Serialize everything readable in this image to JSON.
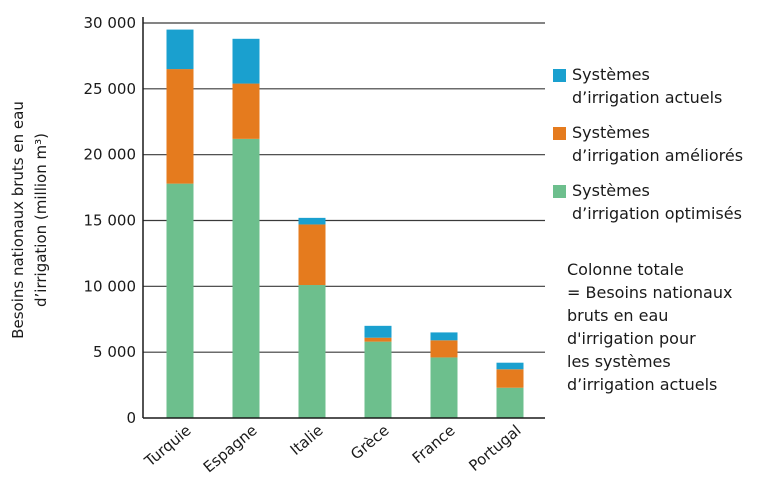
{
  "chart_data": {
    "type": "bar",
    "stacked": true,
    "categories": [
      "Turquie",
      "Espagne",
      "Italie",
      "Grèce",
      "France",
      "Portugal"
    ],
    "series": [
      {
        "name": "Systèmes d’irrigation optimisés",
        "color": "#6dbf8d",
        "values": [
          17800,
          21200,
          10100,
          5800,
          4600,
          2300
        ]
      },
      {
        "name": "Systèmes d’irrigation améliorés",
        "color": "#e57b1e",
        "values": [
          8700,
          4200,
          4600,
          300,
          1300,
          1400
        ]
      },
      {
        "name": "Systèmes d’irrigation actuels",
        "color": "#1aa0cf",
        "values": [
          3000,
          3400,
          500,
          900,
          600,
          500
        ]
      }
    ],
    "yticks": [
      0,
      5000,
      10000,
      15000,
      20000,
      25000,
      30000
    ],
    "ytick_labels": [
      "0",
      "5 000",
      "10 000",
      "15 000",
      "20 000",
      "25 000",
      "30 000"
    ],
    "ylabel_lines": [
      "Besoins nationaux bruts en eau",
      "d’irrigation (million m³)"
    ],
    "ylim": [
      0,
      30000
    ],
    "grid": true,
    "legend_position": "right",
    "legend": [
      {
        "series_index": 2,
        "lines": [
          "Systèmes",
          "d’irrigation actuels"
        ]
      },
      {
        "series_index": 1,
        "lines": [
          "Systèmes",
          "d’irrigation améliorés"
        ]
      },
      {
        "series_index": 0,
        "lines": [
          "Systèmes",
          "d’irrigation optimisés"
        ]
      }
    ],
    "note_lines": [
      "Colonne totale",
      "= Besoins nationaux",
      "bruts en eau",
      "d'irrigation pour",
      "les systèmes",
      "d’irrigation actuels"
    ]
  }
}
